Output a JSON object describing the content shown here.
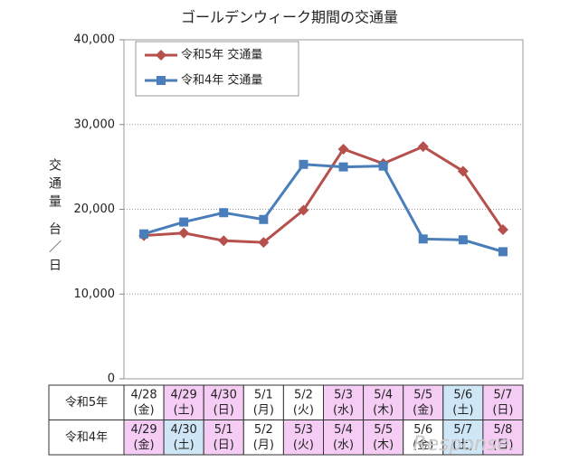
{
  "chart_data": {
    "type": "line",
    "title": "ゴールデンウィーク期間の交通量",
    "y_label": "交通量 台／日",
    "categories": [
      null,
      null,
      null,
      null,
      null,
      null,
      null,
      null,
      null,
      null
    ],
    "series": [
      {
        "name": "令和5年 交通量",
        "color": "#b5504d",
        "marker": "diamond",
        "values": [
          16900,
          17200,
          16300,
          16100,
          19900,
          27100,
          25400,
          27400,
          24500,
          17600
        ]
      },
      {
        "name": "令和4年 交通量",
        "color": "#4a7ebb",
        "marker": "square",
        "values": [
          17100,
          18500,
          19600,
          18800,
          25300,
          25000,
          25100,
          16500,
          16400,
          15000
        ]
      }
    ],
    "ylim": [
      0,
      40000
    ],
    "yticks": [
      0,
      {
        "value": 10000,
        "label": "10,000"
      },
      {
        "value": 20000,
        "label": "20,000"
      },
      {
        "value": 30000,
        "label": "30,000"
      },
      {
        "value": 40000,
        "label": "40,000"
      }
    ],
    "grid": true,
    "legend": "upper left"
  },
  "table": {
    "rows": [
      {
        "label": "令和5年",
        "cells": [
          {
            "date": "4/28",
            "day": "(金)",
            "bg": "#ffffff"
          },
          {
            "date": "4/29",
            "day": "(土)",
            "bg": "#f4ccf4"
          },
          {
            "date": "4/30",
            "day": "(日)",
            "bg": "#f4ccf4"
          },
          {
            "date": "5/1",
            "day": "(月)",
            "bg": "#ffffff"
          },
          {
            "date": "5/2",
            "day": "(火)",
            "bg": "#ffffff"
          },
          {
            "date": "5/3",
            "day": "(水)",
            "bg": "#f4ccf4"
          },
          {
            "date": "5/4",
            "day": "(木)",
            "bg": "#f4ccf4"
          },
          {
            "date": "5/5",
            "day": "(金)",
            "bg": "#f4ccf4"
          },
          {
            "date": "5/6",
            "day": "(土)",
            "bg": "#cfe6f7"
          },
          {
            "date": "5/7",
            "day": "(日)",
            "bg": "#f4ccf4"
          }
        ]
      },
      {
        "label": "令和4年",
        "cells": [
          {
            "date": "4/29",
            "day": "(金)",
            "bg": "#f4ccf4"
          },
          {
            "date": "4/30",
            "day": "(土)",
            "bg": "#cfe6f7"
          },
          {
            "date": "5/1",
            "day": "(日)",
            "bg": "#f4ccf4"
          },
          {
            "date": "5/2",
            "day": "(月)",
            "bg": "#ffffff"
          },
          {
            "date": "5/3",
            "day": "(火)",
            "bg": "#f4ccf4"
          },
          {
            "date": "5/4",
            "day": "(水)",
            "bg": "#f4ccf4"
          },
          {
            "date": "5/5",
            "day": "(木)",
            "bg": "#f4ccf4"
          },
          {
            "date": "5/6",
            "day": "(金)",
            "bg": "#ffffff"
          },
          {
            "date": "5/7",
            "day": "(土)",
            "bg": "#cfe6f7"
          },
          {
            "date": "5/8",
            "day": "(日)",
            "bg": "#f4ccf4"
          }
        ]
      }
    ]
  },
  "watermark": "Response."
}
